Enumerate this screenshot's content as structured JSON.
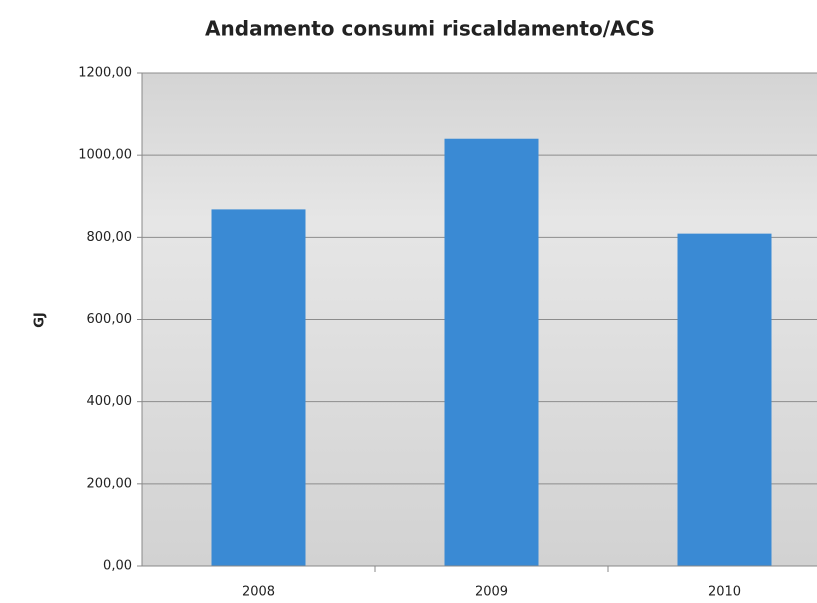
{
  "chart_data": {
    "type": "bar",
    "title": "Andamento consumi riscaldamento/ACS",
    "y_label": "GJ",
    "categories": [
      "2008",
      "2009",
      "2010"
    ],
    "values": [
      868,
      1040,
      809
    ],
    "color": "#3a8ad4",
    "ylim": [
      0,
      1200
    ],
    "yticks": [
      {
        "value": 0,
        "label": "0,00"
      },
      {
        "value": 200,
        "label": "200,00"
      },
      {
        "value": 400,
        "label": "400,00"
      },
      {
        "value": 600,
        "label": "600,00"
      },
      {
        "value": 800,
        "label": "800,00"
      },
      {
        "value": 1000,
        "label": "1000,00"
      },
      {
        "value": 1200,
        "label": "1200,00"
      }
    ],
    "grid": true
  }
}
